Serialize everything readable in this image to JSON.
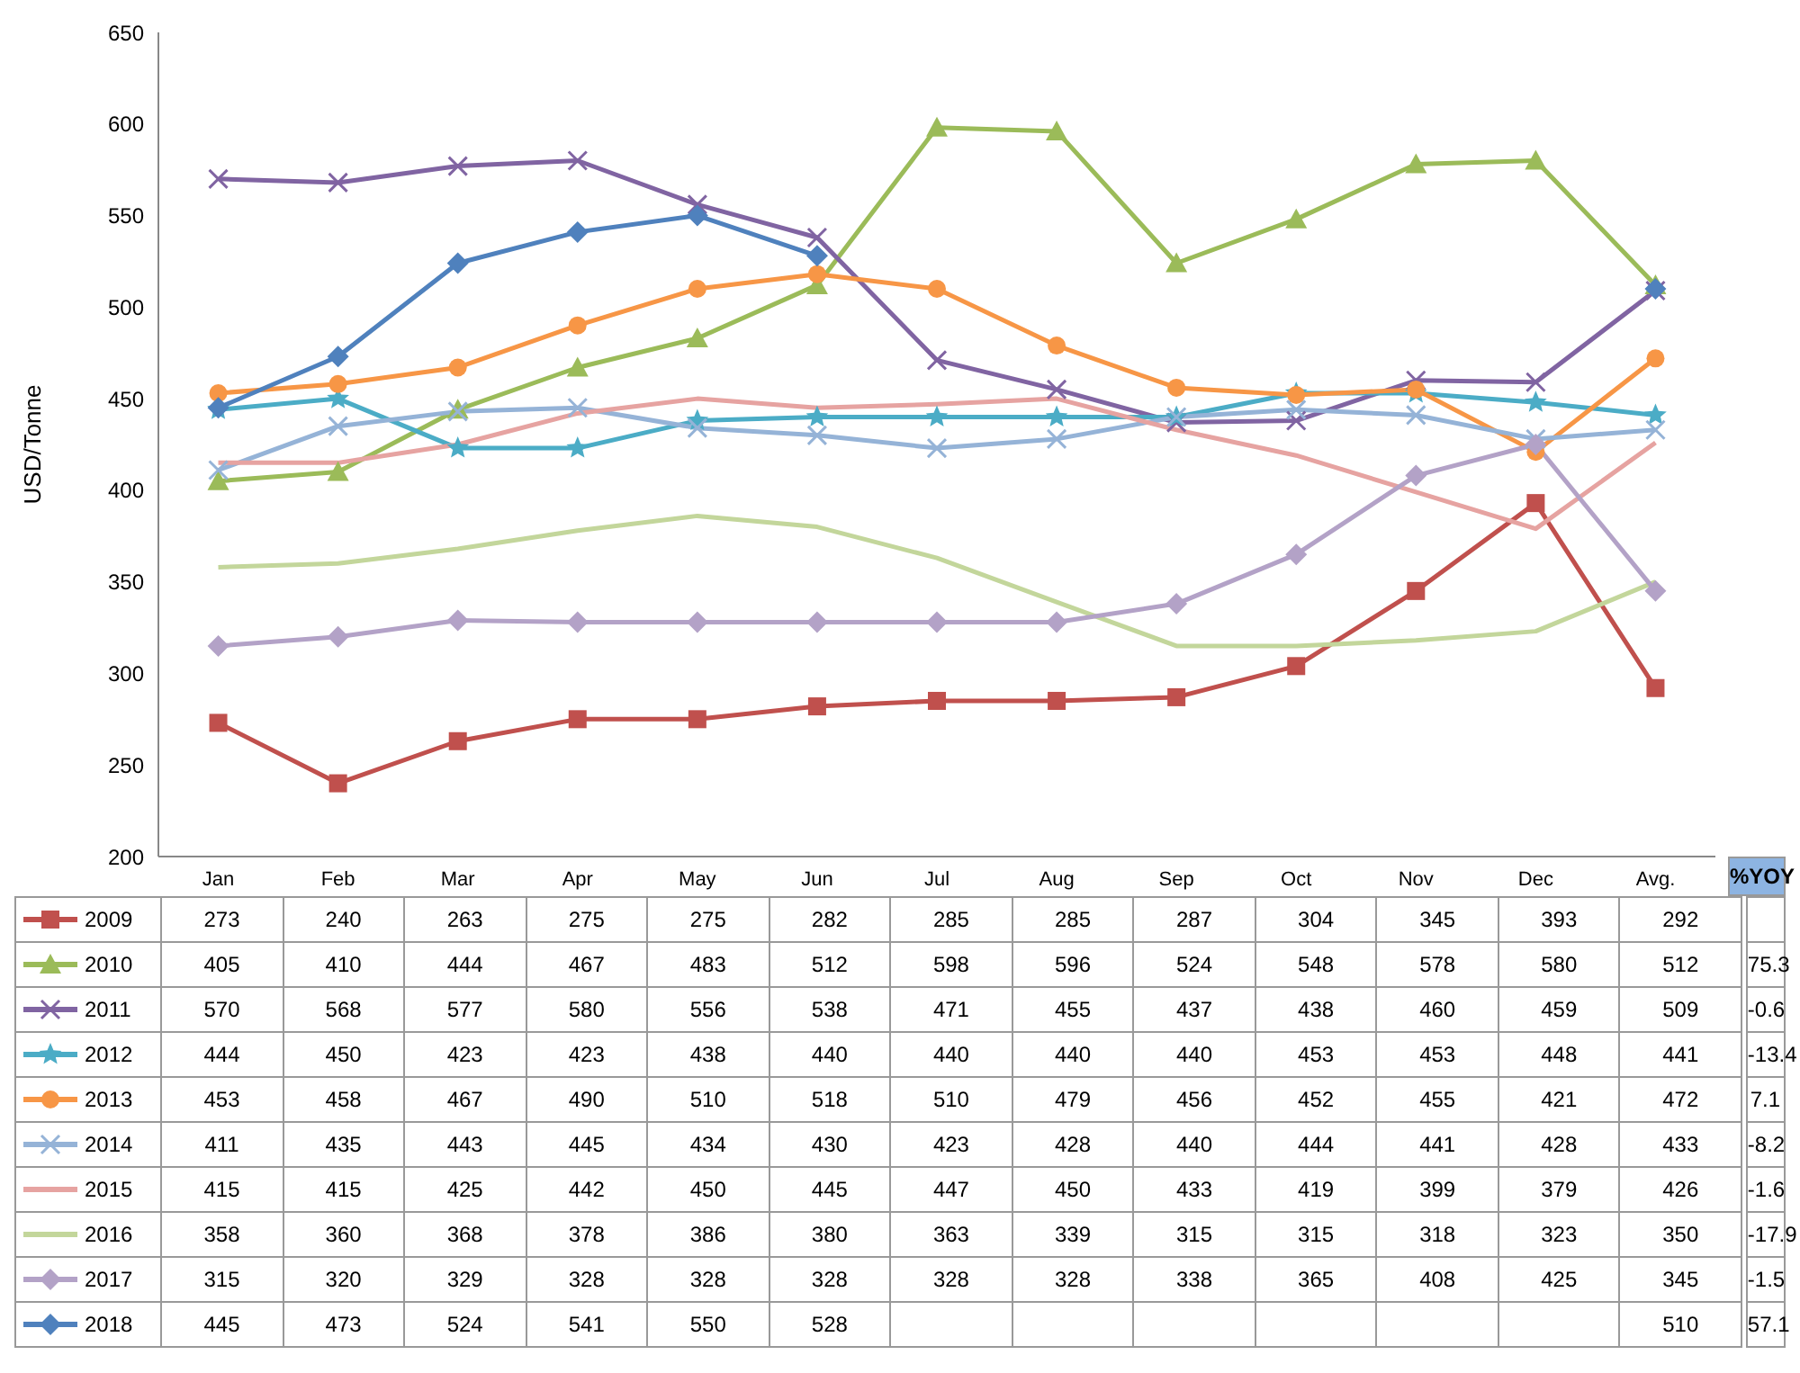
{
  "chart_data": {
    "type": "line",
    "ylabel": "USD/Tonne",
    "categories": [
      "Jan",
      "Feb",
      "Mar",
      "Apr",
      "May",
      "Jun",
      "Jul",
      "Aug",
      "Sep",
      "Oct",
      "Nov",
      "Dec",
      "Avg."
    ],
    "ylim": [
      200,
      650
    ],
    "yticks": [
      200,
      250,
      300,
      350,
      400,
      450,
      500,
      550,
      600,
      650
    ],
    "legend": "bottom",
    "data_labels": true,
    "series": [
      {
        "name": "2009",
        "color": "#c0504d",
        "marker": "square",
        "values": [
          273,
          240,
          263,
          275,
          275,
          282,
          285,
          285,
          287,
          304,
          345,
          393,
          292
        ]
      },
      {
        "name": "2010",
        "color": "#9bbb59",
        "marker": "triangle",
        "values": [
          405,
          410,
          444,
          467,
          483,
          512,
          598,
          596,
          524,
          548,
          578,
          580,
          512
        ]
      },
      {
        "name": "2011",
        "color": "#8064a2",
        "marker": "cross",
        "values": [
          570,
          568,
          577,
          580,
          556,
          538,
          471,
          455,
          437,
          438,
          460,
          459,
          509
        ]
      },
      {
        "name": "2012",
        "color": "#4bacc6",
        "marker": "star",
        "values": [
          444,
          450,
          423,
          423,
          438,
          440,
          440,
          440,
          440,
          453,
          453,
          448,
          441
        ]
      },
      {
        "name": "2013",
        "color": "#f79646",
        "marker": "circle",
        "values": [
          453,
          458,
          467,
          490,
          510,
          518,
          510,
          479,
          456,
          452,
          455,
          421,
          472
        ]
      },
      {
        "name": "2014",
        "color": "#95b3d7",
        "marker": "cross",
        "values": [
          411,
          435,
          443,
          445,
          434,
          430,
          423,
          428,
          440,
          444,
          441,
          428,
          433
        ]
      },
      {
        "name": "2015",
        "color": "#e6a3a1",
        "marker": "none",
        "values": [
          415,
          415,
          425,
          442,
          450,
          445,
          447,
          450,
          433,
          419,
          399,
          379,
          426
        ]
      },
      {
        "name": "2016",
        "color": "#c3d69b",
        "marker": "none",
        "values": [
          358,
          360,
          368,
          378,
          386,
          380,
          363,
          339,
          315,
          315,
          318,
          323,
          350
        ]
      },
      {
        "name": "2017",
        "color": "#b3a2c7",
        "marker": "diamond",
        "values": [
          315,
          320,
          329,
          328,
          328,
          328,
          328,
          328,
          338,
          365,
          408,
          425,
          345
        ]
      },
      {
        "name": "2018",
        "color": "#4f81bd",
        "marker": "diamond",
        "values": [
          445,
          473,
          524,
          541,
          550,
          528,
          null,
          null,
          null,
          null,
          null,
          null,
          510
        ]
      }
    ],
    "annotations": [
      "%YOY",
      "75.3",
      "-0.6",
      "-13.4",
      "7.1",
      "-8.2",
      "-1.6",
      "-17.9",
      "-1.5",
      "57.1"
    ]
  }
}
